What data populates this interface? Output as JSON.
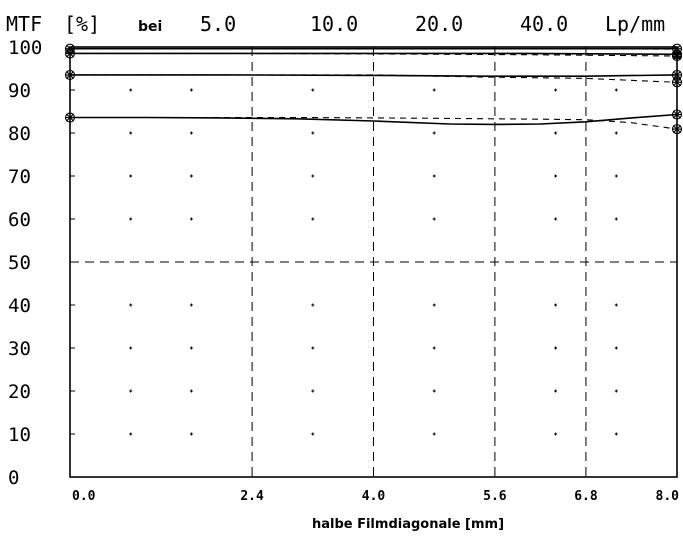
{
  "header": {
    "mtf_label": "MTF",
    "unit_label": "[%]",
    "bei_label": "bei",
    "frequencies": [
      "5.0",
      "10.0",
      "20.0",
      "40.0"
    ],
    "freq_unit": "Lp/mm"
  },
  "chart_data": {
    "type": "line",
    "title": "",
    "xlabel": "halbe Filmdiagonale [mm]",
    "ylabel": "MTF [%]",
    "xlim": [
      0,
      8
    ],
    "ylim": [
      0,
      100
    ],
    "x_ticks": [
      0,
      2.4,
      4,
      5.6,
      6.8,
      8
    ],
    "x_tick_labels": [
      "0.0",
      "2.4",
      "4.0",
      "5.6",
      "6.8",
      "8.0"
    ],
    "y_ticks": [
      0,
      10,
      20,
      30,
      40,
      50,
      60,
      70,
      80,
      90,
      100
    ],
    "y_tick_labels": [
      "0",
      "10",
      "20",
      "30",
      "40",
      "50",
      "60",
      "70",
      "80",
      "90",
      "100"
    ],
    "grid": "dashed lines at x = 2.4, 4.0, 5.6, 6.8 and y = 50; dot grid elsewhere",
    "series": [
      {
        "name": "5.0",
        "style": "solid",
        "x": [
          0,
          2,
          4,
          6,
          8
        ],
        "y": [
          99.6,
          99.6,
          99.6,
          99.6,
          99.6
        ]
      },
      {
        "name": "5.0",
        "style": "dashed",
        "x": [
          0,
          2,
          4,
          6,
          8
        ],
        "y": [
          99.6,
          99.6,
          99.6,
          99.6,
          99.5
        ]
      },
      {
        "name": "10.0",
        "style": "solid",
        "x": [
          0,
          2,
          4,
          6,
          8
        ],
        "y": [
          98.5,
          98.5,
          98.5,
          98.5,
          98.3
        ]
      },
      {
        "name": "10.0",
        "style": "dashed",
        "x": [
          0,
          2,
          4,
          6,
          8
        ],
        "y": [
          98.5,
          98.5,
          98.4,
          98.2,
          97.9
        ]
      },
      {
        "name": "20.0",
        "style": "solid",
        "x": [
          0,
          2,
          4,
          5.5,
          6.8,
          8
        ],
        "y": [
          93.5,
          93.5,
          93.4,
          93.2,
          93.2,
          93.5
        ]
      },
      {
        "name": "20.0",
        "style": "dashed",
        "x": [
          0,
          2,
          4,
          5.5,
          6.8,
          8
        ],
        "y": [
          93.5,
          93.5,
          93.5,
          93.0,
          92.7,
          91.8
        ]
      },
      {
        "name": "40.0",
        "style": "solid",
        "x": [
          0,
          1,
          2,
          3,
          4,
          5,
          5.6,
          6.2,
          6.8,
          7.4,
          8
        ],
        "y": [
          83.6,
          83.6,
          83.5,
          83.3,
          82.8,
          82.1,
          82.0,
          82.1,
          82.6,
          83.5,
          84.3
        ]
      },
      {
        "name": "40.0",
        "style": "dashed",
        "x": [
          0,
          1,
          2,
          3,
          4,
          5,
          5.6,
          6.2,
          6.8,
          7.4,
          8
        ],
        "y": [
          83.6,
          83.6,
          83.6,
          83.6,
          83.5,
          83.4,
          83.3,
          83.2,
          83.1,
          82.4,
          80.9
        ]
      }
    ]
  }
}
